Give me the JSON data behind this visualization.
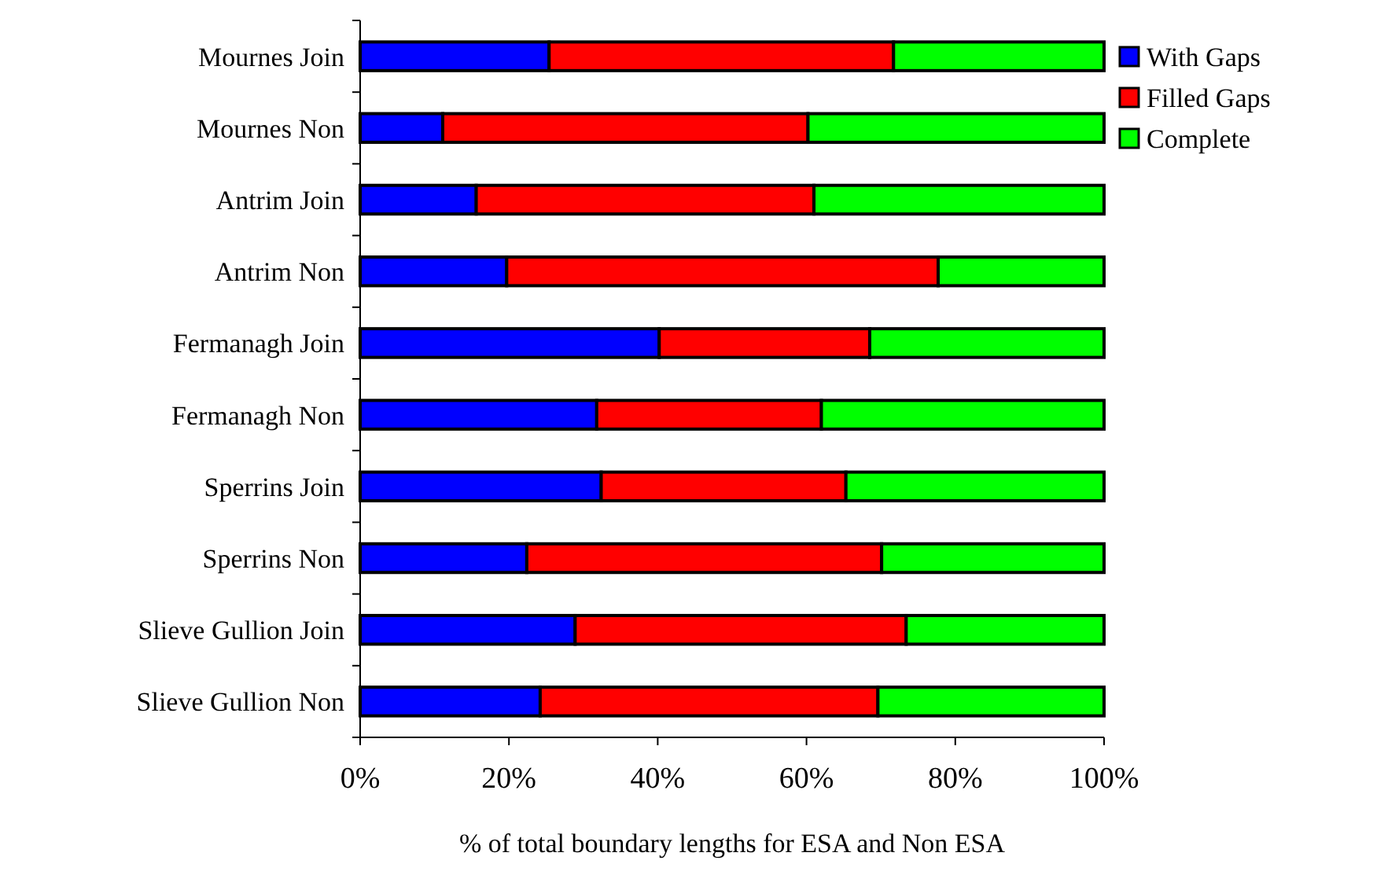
{
  "chart_data": {
    "type": "bar",
    "orientation": "horizontal",
    "stacked": true,
    "xlabel": "% of total boundary lengths for ESA and Non ESA",
    "categories": [
      "Mournes Join",
      "Mournes Non",
      "Antrim Join",
      "Antrim Non",
      "Fermanagh Join",
      "Fermanagh Non",
      "Sperrins Join",
      "Sperrins Non",
      "Slieve Gullion Join",
      "Slieve Gullion Non"
    ],
    "series": [
      {
        "name": "With Gaps",
        "color": "#0000ff",
        "values": [
          25.4,
          11.1,
          15.6,
          19.7,
          40.2,
          31.8,
          32.4,
          22.4,
          28.9,
          24.2
        ]
      },
      {
        "name": "Filled Gaps",
        "color": "#ff0000",
        "values": [
          46.3,
          49.1,
          45.4,
          58.0,
          28.3,
          30.2,
          32.9,
          47.7,
          44.5,
          45.4
        ]
      },
      {
        "name": "Complete",
        "color": "#00ff00",
        "values": [
          28.3,
          39.8,
          39.0,
          22.3,
          31.5,
          38.0,
          34.7,
          29.9,
          26.6,
          30.4
        ]
      }
    ],
    "xlim": [
      0,
      100
    ],
    "xticks": [
      {
        "value": 0,
        "label": "0%"
      },
      {
        "value": 20,
        "label": "20%"
      },
      {
        "value": 40,
        "label": "40%"
      },
      {
        "value": 60,
        "label": "60%"
      },
      {
        "value": 80,
        "label": "80%"
      },
      {
        "value": 100,
        "label": "100%"
      }
    ],
    "legend": "top right",
    "grid": false
  }
}
